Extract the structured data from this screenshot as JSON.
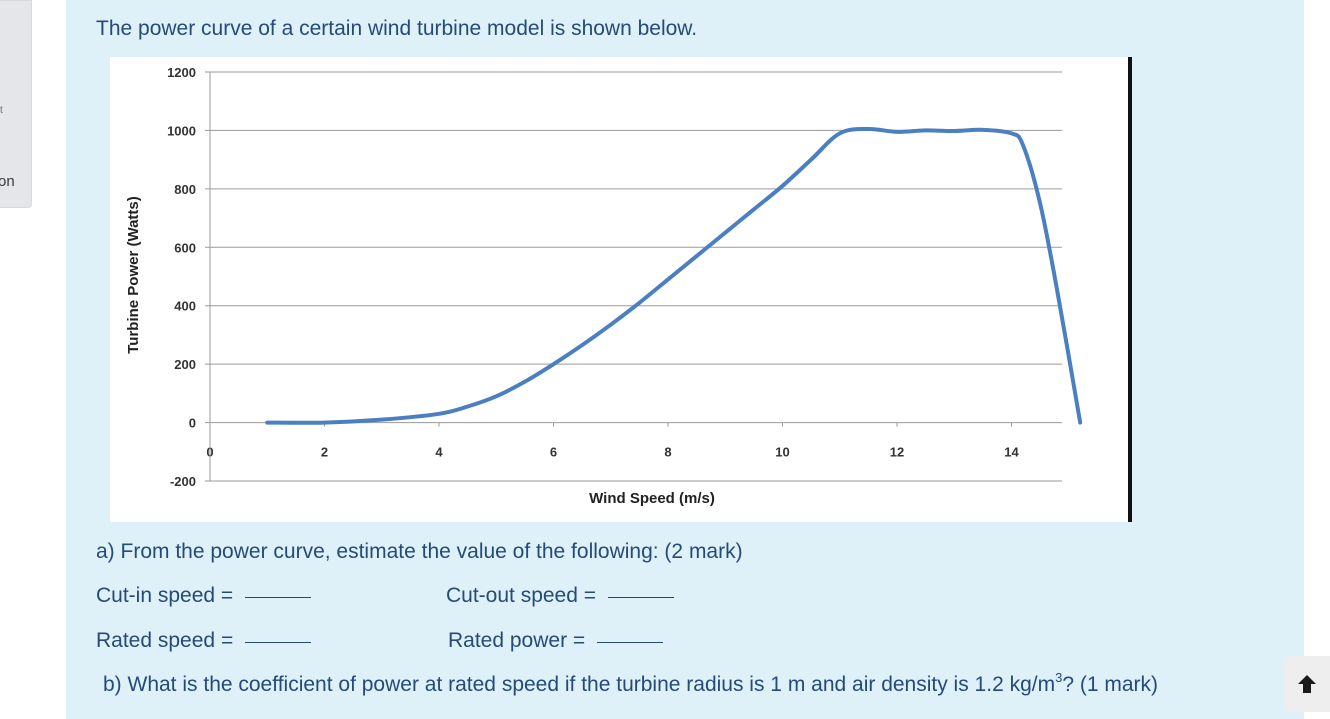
{
  "left_nav": {
    "label_fragment": "on",
    "tick_fragment": "t"
  },
  "question": {
    "intro": "The power curve of a certain wind turbine model is shown below.",
    "part_a": "a) From the power curve, estimate the value of the following: (2 mark)",
    "cut_in_label": "Cut-in speed",
    "cut_out_label": "Cut-out speed",
    "rated_speed_label": "Rated speed",
    "rated_power_label": "Rated power",
    "equals": "=",
    "part_b_prefix": "b) What is the coefficient of power at rated speed if the turbine radius is 1 m and air density is 1.2 kg/m",
    "part_b_sup": "3",
    "part_b_suffix": "? (1 mark)"
  },
  "icons": {
    "scroll_up": "arrow-up-icon"
  },
  "colors": {
    "panel_bg": "#def1f8",
    "text": "#264a78",
    "curve": "#4a7fc1"
  },
  "chart_data": {
    "type": "line",
    "xlabel": "Wind Speed (m/s)",
    "ylabel": "Turbine Power (Watts)",
    "xlim": [
      0,
      16
    ],
    "ylim": [
      -200,
      1200
    ],
    "x_ticks": [
      "0",
      "2",
      "4",
      "6",
      "8",
      "10",
      "12",
      "14"
    ],
    "y_ticks": [
      "1200",
      "1000",
      "800",
      "600",
      "400",
      "200",
      "0",
      "-200"
    ],
    "grid": "horizontal",
    "series": [
      {
        "x": [
          1,
          2,
          3,
          4,
          4.5,
          5,
          5.5,
          6,
          6.5,
          7,
          7.5,
          8,
          8.5,
          9,
          9.5,
          10,
          10.5,
          11,
          11.5,
          12,
          12.5,
          13,
          13.5,
          14,
          14.2,
          14.5,
          14.8,
          15.2
        ],
        "y": [
          0,
          0,
          10,
          30,
          55,
          90,
          140,
          200,
          265,
          335,
          410,
          490,
          570,
          650,
          730,
          810,
          900,
          990,
          1005,
          995,
          1000,
          998,
          1002,
          990,
          950,
          750,
          450,
          0
        ]
      }
    ]
  }
}
